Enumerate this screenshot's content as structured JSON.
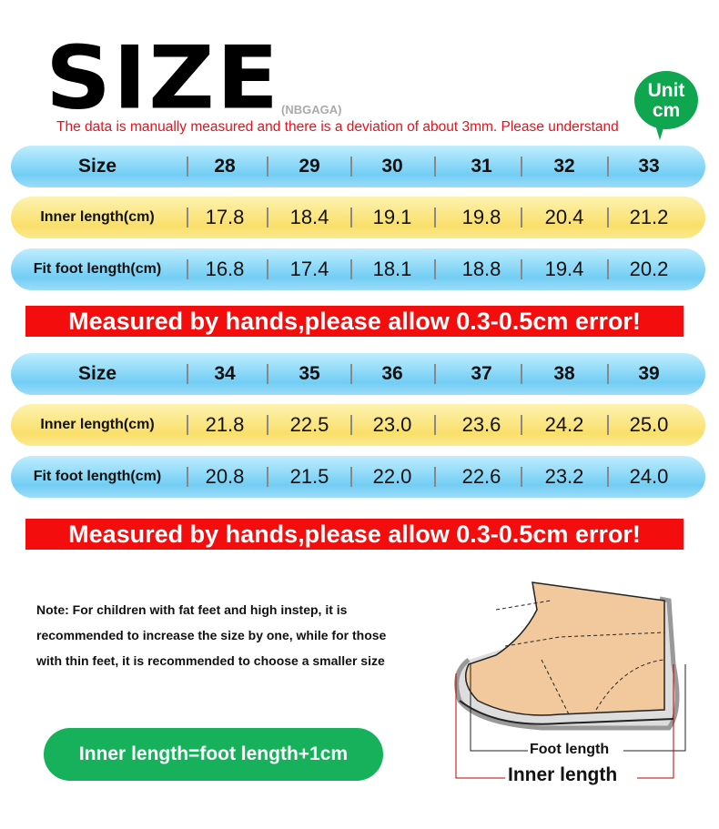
{
  "header": {
    "title": "SIZE",
    "brand": "(NBGAGA)",
    "notice": "The data is manually measured and there is a deviation of about 3mm. Please understand",
    "unit_line1": "Unit",
    "unit_line2": "cm"
  },
  "tables": [
    {
      "rows": [
        {
          "label": "Size",
          "values": [
            "28",
            "29",
            "30",
            "31",
            "32",
            "33"
          ]
        },
        {
          "label": "Inner length(cm)",
          "values": [
            "17.8",
            "18.4",
            "19.1",
            "19.8",
            "20.4",
            "21.2"
          ]
        },
        {
          "label": "Fit foot length(cm)",
          "values": [
            "16.8",
            "17.4",
            "18.1",
            "18.8",
            "19.4",
            "20.2"
          ]
        }
      ]
    },
    {
      "rows": [
        {
          "label": "Size",
          "values": [
            "34",
            "35",
            "36",
            "37",
            "38",
            "39"
          ]
        },
        {
          "label": "Inner length(cm)",
          "values": [
            "21.8",
            "22.5",
            "23.0",
            "23.6",
            "24.2",
            "25.0"
          ]
        },
        {
          "label": "Fit foot length(cm)",
          "values": [
            "20.8",
            "21.5",
            "22.0",
            "22.6",
            "23.2",
            "24.0"
          ]
        }
      ]
    }
  ],
  "banner": "Measured by hands,please allow 0.3-0.5cm error!",
  "note": "Note: For children with fat feet and high instep, it is recommended to increase the size by one, while for those with thin feet, it is recommended to choose a smaller size",
  "formula": "Inner length=foot length+1cm",
  "diagram": {
    "foot_length": "Foot length",
    "inner_length": "Inner length"
  },
  "colors": {
    "banner": "#f30d0d",
    "green": "#16b15a",
    "blue_row": "#72cdf4",
    "yellow_row": "#f9df6a"
  }
}
